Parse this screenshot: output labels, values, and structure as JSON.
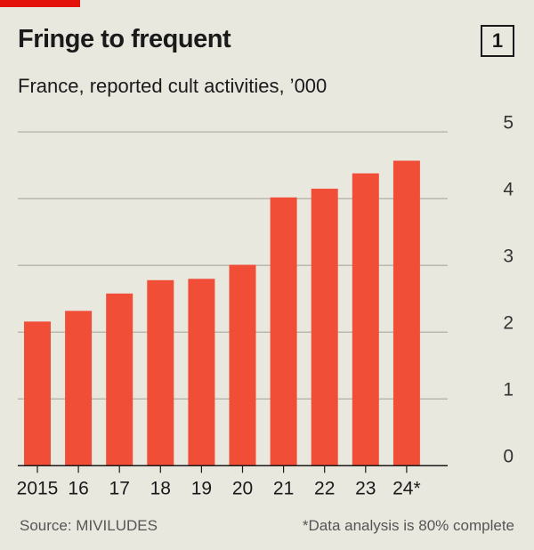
{
  "title": "Fringe to frequent",
  "chart_number": "1",
  "subtitle": "France, reported cult activities, ’000",
  "source": "Source: MIVILUDES",
  "footnote": "*Data analysis is 80% complete",
  "colors": {
    "bar": "#f04e37",
    "background": "#e9e8df",
    "brand": "#e3120b"
  },
  "chart_data": {
    "type": "bar",
    "title": "Fringe to frequent",
    "subtitle": "France, reported cult activities, ’000",
    "categories": [
      "2015",
      "16",
      "17",
      "18",
      "19",
      "20",
      "21",
      "22",
      "23",
      "24*"
    ],
    "values": [
      2.16,
      2.32,
      2.58,
      2.78,
      2.8,
      3.01,
      4.02,
      4.15,
      4.38,
      4.57
    ],
    "ylim": [
      0,
      5
    ],
    "yticks": [
      "0",
      "1",
      "2",
      "3",
      "4",
      "5"
    ],
    "yaxis_position": "right",
    "grid": true,
    "xlabel": "",
    "ylabel": ""
  }
}
